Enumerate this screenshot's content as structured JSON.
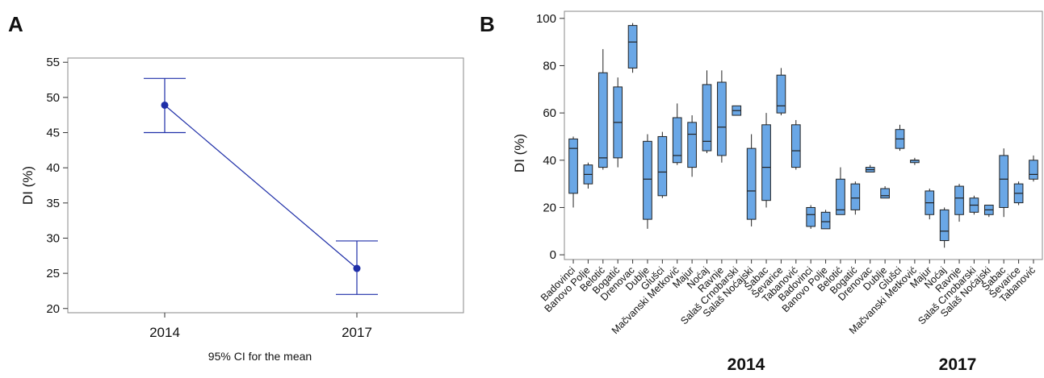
{
  "chart_data": [
    {
      "panel": "A",
      "type": "line",
      "categories": [
        "2014",
        "2017"
      ],
      "mean": [
        48.9,
        25.7
      ],
      "ci_lower": [
        45.0,
        22.0
      ],
      "ci_upper": [
        52.7,
        29.6
      ],
      "xlabel": "95% CI for the mean",
      "ylabel": "DI (%)",
      "ylim": [
        19.4,
        55.6
      ],
      "yticks": [
        20,
        25,
        30,
        35,
        40,
        45,
        50,
        55
      ],
      "grid": false,
      "colors": {
        "series": "#1f2fa8"
      }
    },
    {
      "panel": "B",
      "type": "box",
      "ylabel": "DI (%)",
      "ylim": [
        -2,
        103
      ],
      "yticks": [
        0,
        20,
        40,
        60,
        80,
        100
      ],
      "grid": false,
      "colors": {
        "box_fill": "#6aa7e6",
        "box_stroke": "#222222"
      },
      "groups": [
        {
          "label": "2014",
          "categories": [
            "Badovinci",
            "Banovo Polje",
            "Belotić",
            "Bogatić",
            "Drenovac",
            "Dublje",
            "Glušci",
            "Mačvanski Metković",
            "Majur",
            "Noćaj",
            "Ravnje",
            "Salaš Crnobarski",
            "Salaš Noćajski",
            "Šabac",
            "Ševarice",
            "Tabanović"
          ],
          "boxes": [
            {
              "min": 20,
              "q1": 26,
              "median": 45,
              "q3": 49,
              "max": 50
            },
            {
              "min": 28,
              "q1": 30,
              "median": 34,
              "q3": 38,
              "max": 39
            },
            {
              "min": 36,
              "q1": 37,
              "median": 41,
              "q3": 77,
              "max": 87
            },
            {
              "min": 37,
              "q1": 41,
              "median": 56,
              "q3": 71,
              "max": 75
            },
            {
              "min": 77,
              "q1": 79,
              "median": 90,
              "q3": 97,
              "max": 98
            },
            {
              "min": 11,
              "q1": 15,
              "median": 32,
              "q3": 48,
              "max": 51
            },
            {
              "min": 24,
              "q1": 25,
              "median": 35,
              "q3": 50,
              "max": 52
            },
            {
              "min": 38,
              "q1": 39,
              "median": 42,
              "q3": 58,
              "max": 64
            },
            {
              "min": 33,
              "q1": 37,
              "median": 51,
              "q3": 56,
              "max": 59
            },
            {
              "min": 43,
              "q1": 44,
              "median": 48,
              "q3": 72,
              "max": 78
            },
            {
              "min": 39,
              "q1": 42,
              "median": 54,
              "q3": 73,
              "max": 78
            },
            {
              "min": 59,
              "q1": 59,
              "median": 61,
              "q3": 63,
              "max": 63
            },
            {
              "min": 12,
              "q1": 15,
              "median": 27,
              "q3": 45,
              "max": 51
            },
            {
              "min": 20,
              "q1": 23,
              "median": 37,
              "q3": 55,
              "max": 60
            },
            {
              "min": 59,
              "q1": 60,
              "median": 63,
              "q3": 76,
              "max": 79
            },
            {
              "min": 36,
              "q1": 37,
              "median": 44,
              "q3": 55,
              "max": 57
            }
          ]
        },
        {
          "label": "2017",
          "categories": [
            "Badovinci",
            "Banovo Polje",
            "Belotić",
            "Bogatić",
            "Drenovac",
            "Dublje",
            "Glušci",
            "Mačvanski Metković",
            "Majur",
            "Noćaj",
            "Ravnje",
            "Salaš Crnobarski",
            "Salaš Noćajski",
            "Šabac",
            "Ševarice",
            "Tabanović"
          ],
          "boxes": [
            {
              "min": 11,
              "q1": 12,
              "median": 17,
              "q3": 20,
              "max": 21
            },
            {
              "min": 11,
              "q1": 11,
              "median": 14,
              "q3": 18,
              "max": 19
            },
            {
              "min": 17,
              "q1": 17,
              "median": 19,
              "q3": 32,
              "max": 37
            },
            {
              "min": 17,
              "q1": 19,
              "median": 24,
              "q3": 30,
              "max": 31
            },
            {
              "min": 35,
              "q1": 35,
              "median": 36,
              "q3": 37,
              "max": 38
            },
            {
              "min": 24,
              "q1": 24,
              "median": 25,
              "q3": 28,
              "max": 29
            },
            {
              "min": 44,
              "q1": 45,
              "median": 49,
              "q3": 53,
              "max": 55
            },
            {
              "min": 38,
              "q1": 39,
              "median": 40,
              "q3": 40,
              "max": 41
            },
            {
              "min": 15,
              "q1": 17,
              "median": 22,
              "q3": 27,
              "max": 28
            },
            {
              "min": 3,
              "q1": 6,
              "median": 10,
              "q3": 19,
              "max": 20
            },
            {
              "min": 14,
              "q1": 17,
              "median": 24,
              "q3": 29,
              "max": 30
            },
            {
              "min": 17,
              "q1": 18,
              "median": 21,
              "q3": 24,
              "max": 25
            },
            {
              "min": 16,
              "q1": 17,
              "median": 19,
              "q3": 21,
              "max": 21
            },
            {
              "min": 16,
              "q1": 20,
              "median": 32,
              "q3": 42,
              "max": 45
            },
            {
              "min": 21,
              "q1": 22,
              "median": 26,
              "q3": 30,
              "max": 31
            },
            {
              "min": 31,
              "q1": 32,
              "median": 34,
              "q3": 40,
              "max": 42
            }
          ]
        }
      ]
    }
  ]
}
